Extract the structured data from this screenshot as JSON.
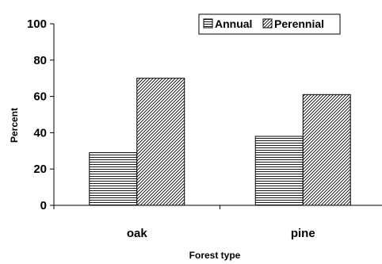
{
  "chart_data": {
    "type": "bar",
    "categories": [
      "oak",
      "pine"
    ],
    "series": [
      {
        "name": "Annual",
        "values": [
          29,
          38
        ],
        "pattern": "horizontal-lines"
      },
      {
        "name": "Perennial",
        "values": [
          70,
          61
        ],
        "pattern": "diagonal-lines"
      }
    ],
    "xlabel": "Forest type",
    "ylabel": "Percent",
    "ylim": [
      0,
      100
    ],
    "yticks": [
      0,
      20,
      40,
      60,
      80,
      100
    ],
    "legend_position": "top-right",
    "grid": false
  }
}
